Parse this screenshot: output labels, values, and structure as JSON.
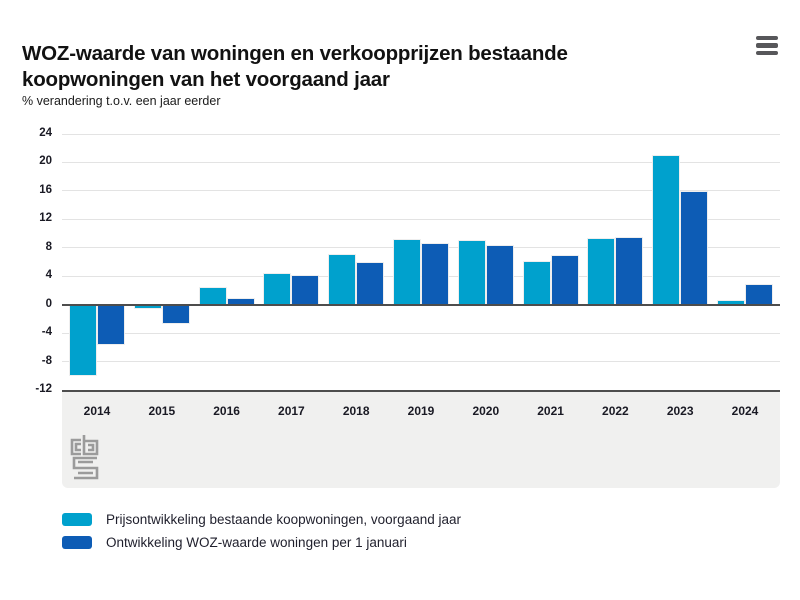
{
  "header": {
    "title": "WOZ-waarde van woningen en verkoopprijzen bestaande koopwoningen van het voorgaand jaar",
    "subtitle": "% verandering t.o.v. een jaar eerder"
  },
  "chart_data": {
    "type": "bar",
    "title": "WOZ-waarde van woningen en verkoopprijzen bestaande koopwoningen van het voorgaand jaar",
    "ylabel": "% verandering t.o.v. een jaar eerder",
    "categories": [
      "2014",
      "2015",
      "2016",
      "2017",
      "2018",
      "2019",
      "2020",
      "2021",
      "2022",
      "2023",
      "2024"
    ],
    "series": [
      {
        "name": "Prijsontwikkeling bestaande koopwoningen, voorgaand jaar",
        "color": "#00a1cd",
        "values": [
          -9.9,
          -0.4,
          2.3,
          4.3,
          7.0,
          9.1,
          9.0,
          6.0,
          9.3,
          20.9,
          0.5
        ]
      },
      {
        "name": "Ontwikkeling WOZ-waarde woningen per 1 januari",
        "color": "#0d5cb5",
        "values": [
          -5.6,
          -2.6,
          0.8,
          4.0,
          5.8,
          8.5,
          8.2,
          6.8,
          9.4,
          15.9,
          2.8
        ]
      }
    ],
    "ylim": [
      -12,
      24
    ],
    "yticks": [
      24,
      20,
      16,
      12,
      8,
      4,
      0,
      -4,
      -8,
      -12
    ],
    "grid": true,
    "zero_line": true,
    "legend_position": "bottom-left"
  },
  "branding": {
    "logo_name": "cbs-logo"
  },
  "colors": {
    "light_blue": "#00a1cd",
    "dark_blue": "#0d5cb5",
    "grid": "#e3e3e3",
    "axis": "#4d4d4d",
    "band": "#f0f0ef",
    "text": "#1a1a24"
  }
}
